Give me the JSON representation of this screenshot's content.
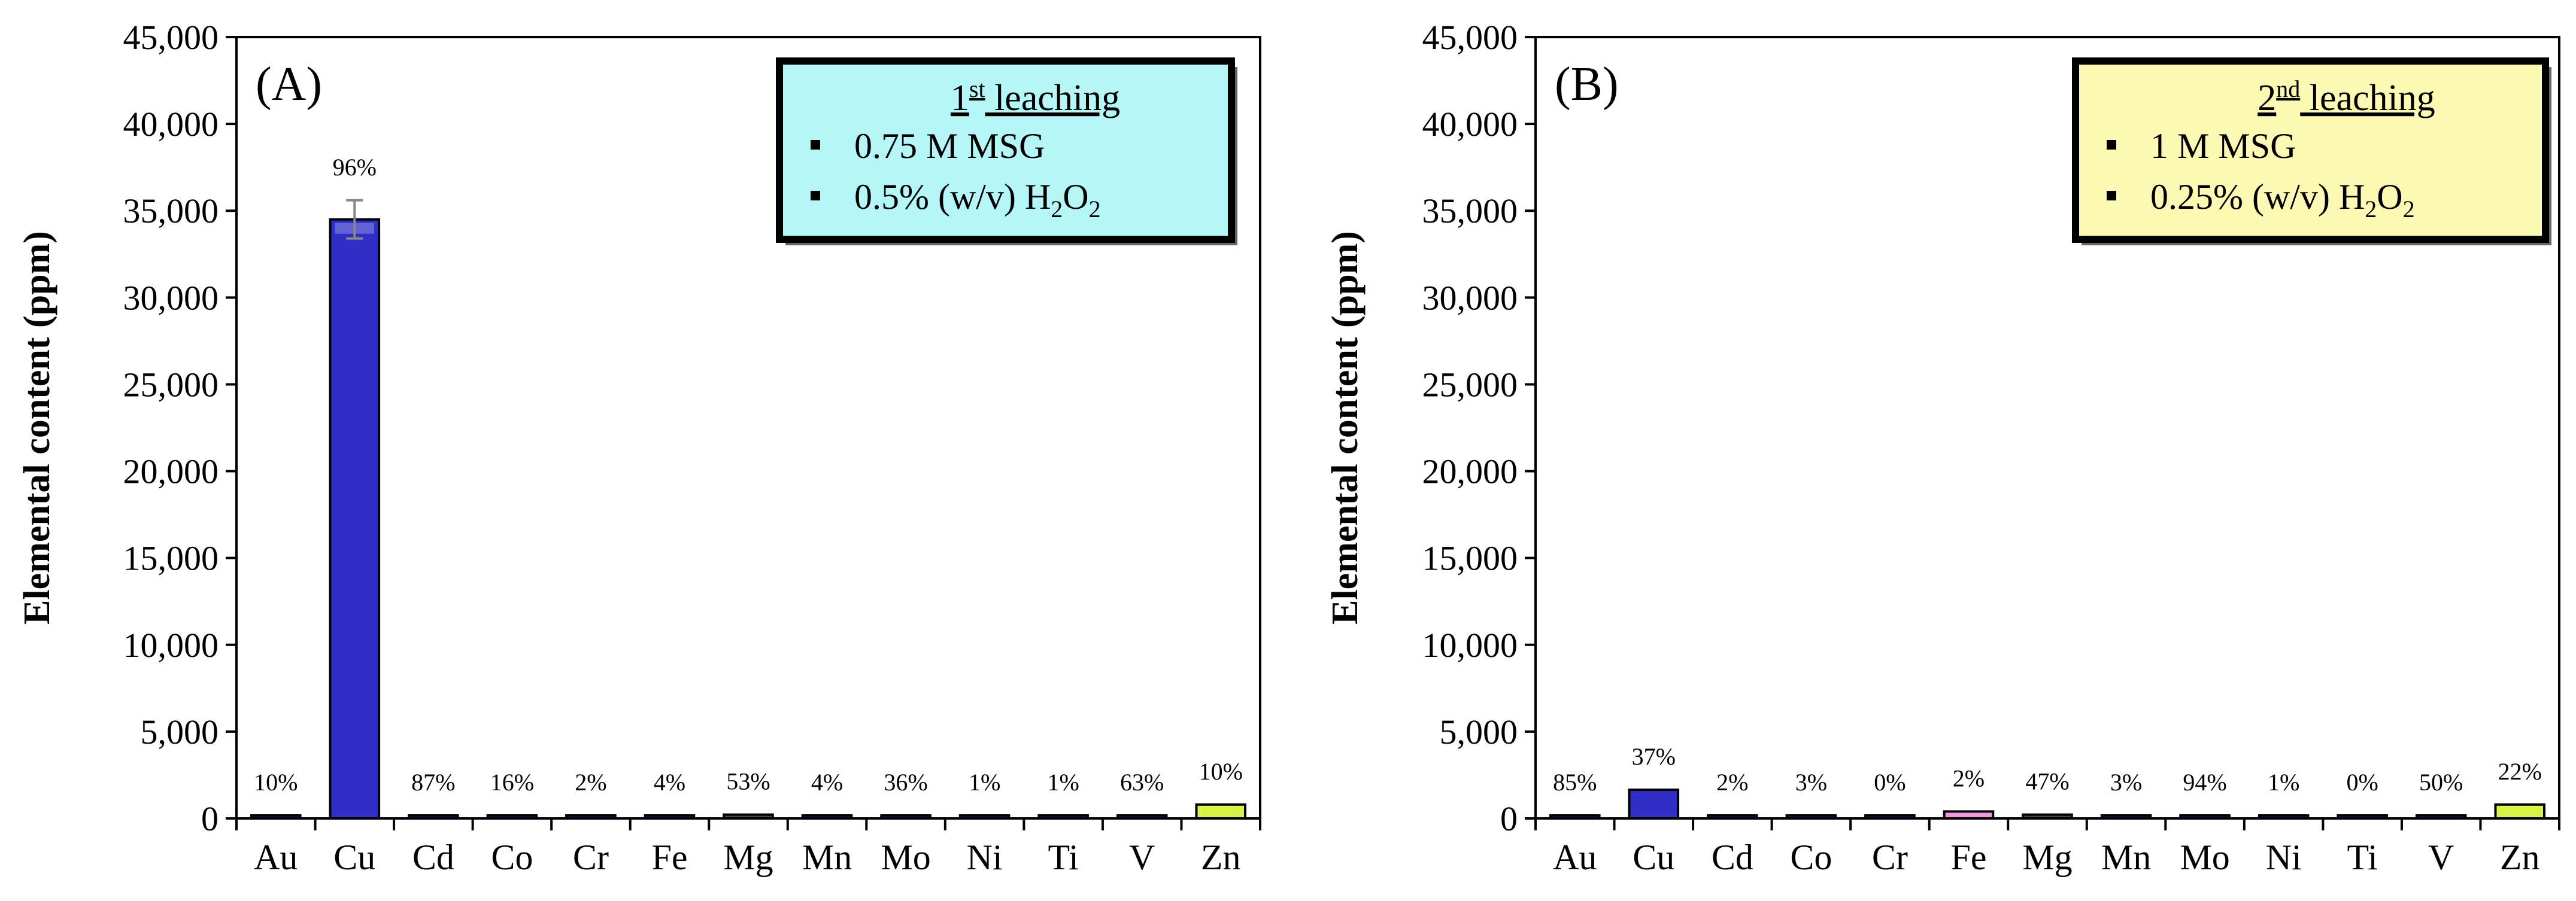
{
  "chart_data": [
    {
      "type": "bar",
      "panel_label": "(A)",
      "ylabel": "Elemental content (ppm)",
      "ylim": [
        0,
        45000
      ],
      "yticks": [
        0,
        5000,
        10000,
        15000,
        20000,
        25000,
        30000,
        35000,
        40000,
        45000
      ],
      "ytick_labels": [
        "0",
        "5,000",
        "10,000",
        "15,000",
        "20,000",
        "25,000",
        "30,000",
        "35,000",
        "40,000",
        "45,000"
      ],
      "categories": [
        "Au",
        "Cu",
        "Cd",
        "Co",
        "Cr",
        "Fe",
        "Mg",
        "Mn",
        "Mo",
        "Ni",
        "Ti",
        "V",
        "Zn"
      ],
      "values": [
        5,
        34500,
        8,
        10,
        15,
        60,
        220,
        25,
        8,
        20,
        10,
        15,
        800
      ],
      "error": [
        0,
        1100,
        0,
        0,
        0,
        0,
        0,
        0,
        0,
        0,
        0,
        0,
        0
      ],
      "bar_colors": [
        "#2f2fc8",
        "#2f2fc8",
        "#2f2fc8",
        "#2f2fc8",
        "#2f2fc8",
        "#2f2fc8",
        "#444444",
        "#2f2fc8",
        "#2f2fc8",
        "#2f2fc8",
        "#2f2fc8",
        "#2f2fc8",
        "#d9f24a"
      ],
      "percent_labels": [
        "10%",
        "96%",
        "87%",
        "16%",
        "2%",
        "4%",
        "53%",
        "4%",
        "36%",
        "1%",
        "1%",
        "63%",
        "10%"
      ],
      "legend": {
        "title_main": "1",
        "title_sup": "st",
        "title_rest": " leaching",
        "items": [
          {
            "text": "0.75 M MSG"
          },
          {
            "text": "0.5% (w/v) H",
            "sub1": "2",
            "mid": "O",
            "sub2": "2"
          }
        ],
        "background": "#b5f7f9"
      }
    },
    {
      "type": "bar",
      "panel_label": "(B)",
      "ylabel": "Elemental content (ppm)",
      "ylim": [
        0,
        45000
      ],
      "yticks": [
        0,
        5000,
        10000,
        15000,
        20000,
        25000,
        30000,
        35000,
        40000,
        45000
      ],
      "ytick_labels": [
        "0",
        "5,000",
        "10,000",
        "15,000",
        "20,000",
        "25,000",
        "30,000",
        "35,000",
        "40,000",
        "45,000"
      ],
      "categories": [
        "Au",
        "Cu",
        "Cd",
        "Co",
        "Cr",
        "Fe",
        "Mg",
        "Mn",
        "Mo",
        "Ni",
        "Ti",
        "V",
        "Zn"
      ],
      "values": [
        5,
        1650,
        5,
        8,
        5,
        400,
        220,
        20,
        15,
        15,
        5,
        10,
        800
      ],
      "error": [
        0,
        0,
        0,
        0,
        0,
        0,
        0,
        0,
        0,
        0,
        0,
        0,
        0
      ],
      "bar_colors": [
        "#2f2fc8",
        "#2f2fc8",
        "#2f2fc8",
        "#2f2fc8",
        "#2f2fc8",
        "#ee9adf",
        "#444444",
        "#2f2fc8",
        "#2f2fc8",
        "#2f2fc8",
        "#2f2fc8",
        "#2f2fc8",
        "#d9f24a"
      ],
      "percent_labels": [
        "85%",
        "37%",
        "2%",
        "3%",
        "0%",
        "2%",
        "47%",
        "3%",
        "94%",
        "1%",
        "0%",
        "50%",
        "22%"
      ],
      "legend": {
        "title_main": "2",
        "title_sup": "nd",
        "title_rest": " leaching",
        "items": [
          {
            "text": "1 M MSG"
          },
          {
            "text": "0.25% (w/v) H",
            "sub1": "2",
            "mid": "O",
            "sub2": "2"
          }
        ],
        "background": "#fbf9b3"
      }
    }
  ]
}
